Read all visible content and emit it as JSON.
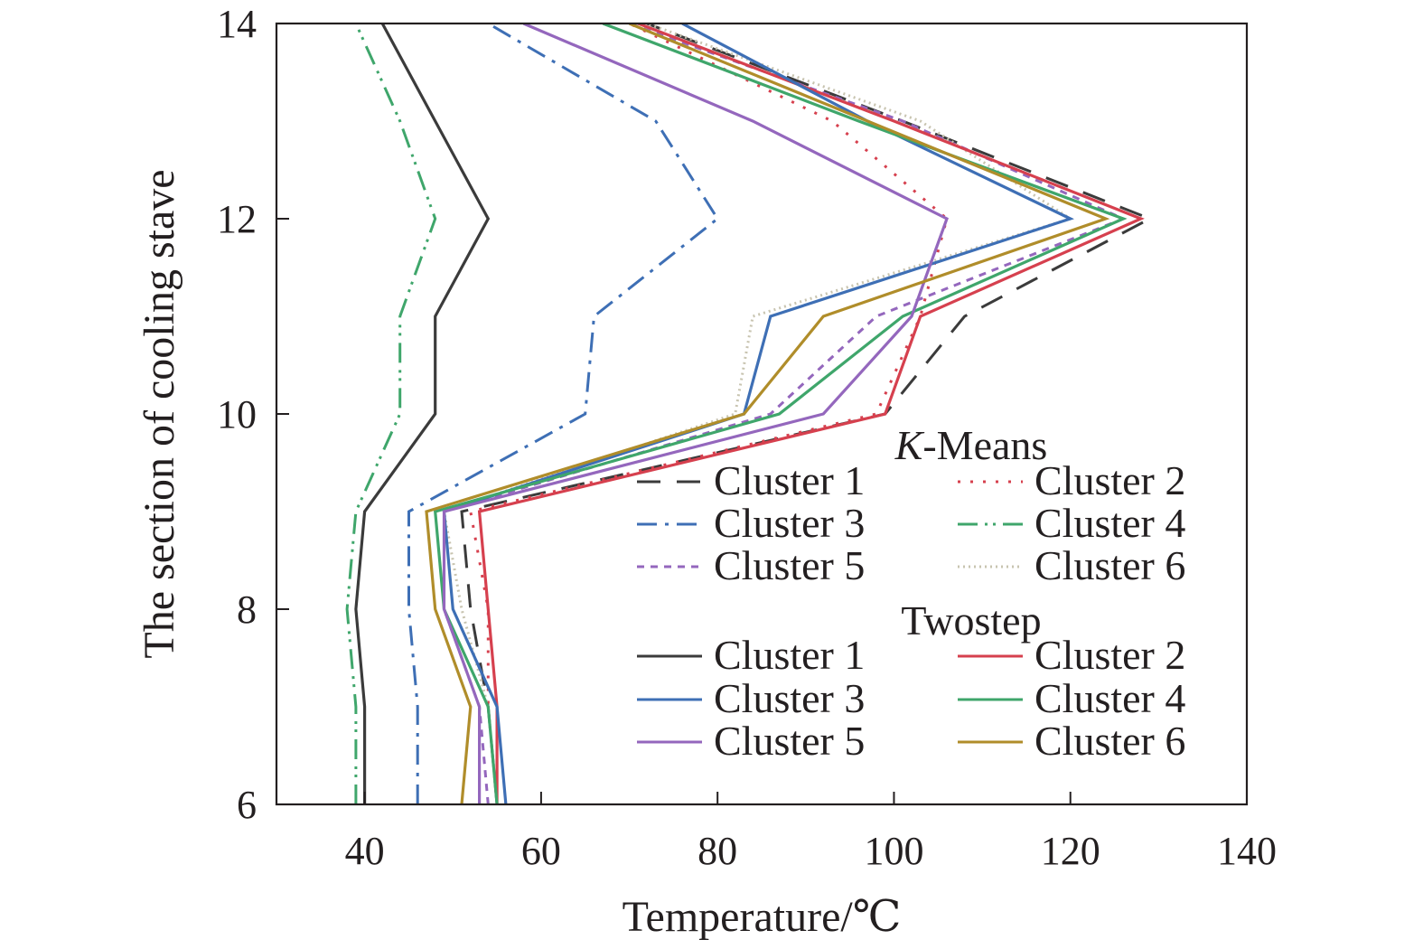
{
  "chart_data": {
    "type": "line",
    "orientation": "vertical-profile",
    "xlabel": "Temperature/℃",
    "ylabel": "The section of cooling stave",
    "xlim": [
      30,
      140
    ],
    "ylim": [
      6,
      14
    ],
    "xticks": [
      40,
      60,
      80,
      100,
      120,
      140
    ],
    "yticks": [
      6,
      8,
      10,
      12,
      14
    ],
    "y": [
      6,
      7,
      8,
      9,
      10,
      11,
      12,
      13,
      14
    ],
    "grid": false,
    "legend_placement": "bottom-right",
    "legend_groups": [
      {
        "key": "kmeans",
        "title_italic": "K",
        "title_rest": "-Means"
      },
      {
        "key": "twostep",
        "title_italic": "",
        "title_rest": "Twostep"
      }
    ],
    "series": [
      {
        "group": "kmeans",
        "name": "Cluster 1",
        "color": "#3b3b3b",
        "dash": "26,18",
        "x": [
          55,
          54,
          52,
          51,
          99,
          108,
          129,
          101,
          72
        ]
      },
      {
        "group": "kmeans",
        "name": "Cluster 2",
        "color": "#d6404e",
        "dash": "3,11",
        "x": [
          55,
          54,
          54,
          52,
          98,
          103,
          106,
          93,
          70
        ]
      },
      {
        "group": "kmeans",
        "name": "Cluster 3",
        "color": "#3e6fb5",
        "dash": "22,9,4,9",
        "x": [
          46,
          46,
          45,
          45,
          65,
          66,
          80,
          73,
          54
        ]
      },
      {
        "group": "kmeans",
        "name": "Cluster 4",
        "color": "#3fa66b",
        "dash": "22,8,3,6,3,8",
        "x": [
          39,
          39,
          38,
          39,
          44,
          44,
          48,
          44,
          39
        ]
      },
      {
        "group": "kmeans",
        "name": "Cluster 5",
        "color": "#9467bd",
        "dash": "8,7",
        "x": [
          54,
          53,
          49,
          49,
          86,
          98,
          126,
          101,
          70
        ]
      },
      {
        "group": "kmeans",
        "name": "Cluster 6",
        "color": "#c8c4b0",
        "dash": "2,4",
        "x": [
          55,
          54,
          51,
          49,
          82,
          84,
          120,
          103,
          72
        ]
      },
      {
        "group": "twostep",
        "name": "Cluster 1",
        "color": "#3b3b3b",
        "dash": "",
        "x": [
          40,
          40,
          39,
          40,
          48,
          48,
          54,
          48,
          42
        ]
      },
      {
        "group": "twostep",
        "name": "Cluster 2",
        "color": "#d6404e",
        "dash": "",
        "x": [
          55,
          55,
          54,
          53,
          99,
          103,
          128,
          100,
          71
        ]
      },
      {
        "group": "twostep",
        "name": "Cluster 3",
        "color": "#3e6fb5",
        "dash": "",
        "x": [
          56,
          55,
          50,
          49,
          83,
          86,
          120,
          97,
          76
        ]
      },
      {
        "group": "twostep",
        "name": "Cluster 4",
        "color": "#3fa66b",
        "dash": "",
        "x": [
          55,
          54,
          49,
          48,
          87,
          101,
          126,
          96,
          67
        ]
      },
      {
        "group": "twostep",
        "name": "Cluster 5",
        "color": "#9467bd",
        "dash": "",
        "x": [
          53,
          53,
          49,
          49,
          92,
          102,
          106,
          84,
          58
        ]
      },
      {
        "group": "twostep",
        "name": "Cluster 6",
        "color": "#b08d2a",
        "dash": "",
        "x": [
          51,
          52,
          48,
          47,
          83,
          92,
          124,
          97,
          70
        ]
      }
    ]
  }
}
